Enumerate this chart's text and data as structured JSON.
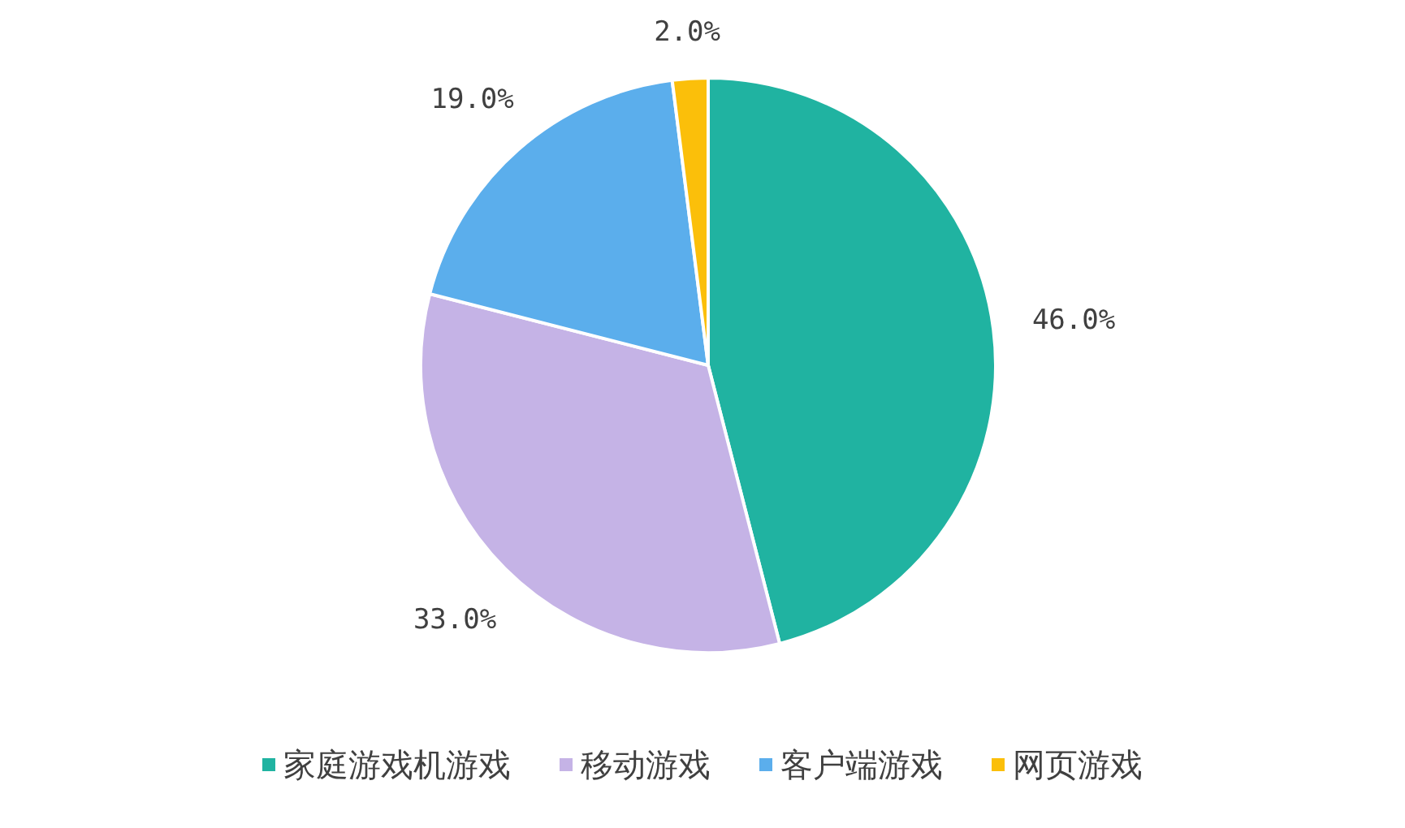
{
  "chart_data": {
    "type": "pie",
    "categories": [
      "家庭游戏机游戏",
      "移动游戏",
      "客户端游戏",
      "网页游戏"
    ],
    "values": [
      46.0,
      33.0,
      19.0,
      2.0
    ],
    "colors": [
      "#20b3a1",
      "#c5b3e6",
      "#5baeec",
      "#fbbf0a"
    ],
    "value_labels": [
      "46.0%",
      "33.0%",
      "19.0%",
      "2.0%"
    ],
    "legend": "bottom"
  }
}
